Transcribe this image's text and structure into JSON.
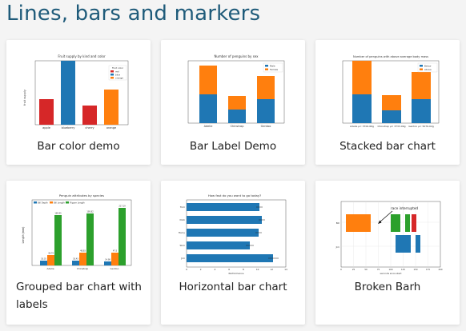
{
  "page": {
    "title": "Lines, bars and markers"
  },
  "cards": [
    {
      "label": "Bar color demo",
      "chart_data": {
        "type": "bar",
        "title": "Fruit supply by kind and color",
        "ylabel": "fruit supply",
        "categories": [
          "apple",
          "blueberry",
          "cherry",
          "orange"
        ],
        "values": [
          40,
          100,
          30,
          55
        ],
        "colors": [
          "#d62728",
          "#1f77b4",
          "#d62728",
          "#ff7f0e"
        ],
        "ylim": [
          0,
          100
        ],
        "legend": {
          "title": "Fruit color",
          "placement": "top-right",
          "entries": [
            {
              "name": "red",
              "color": "#d62728"
            },
            {
              "name": "blue",
              "color": "#1f77b4"
            },
            {
              "name": "orange",
              "color": "#ff7f0e"
            }
          ]
        }
      }
    },
    {
      "label": "Bar Label Demo",
      "chart_data": {
        "type": "bar",
        "title": "Number of penguins by sex",
        "categories": [
          "Adelie",
          "Chinstrap",
          "Gentoo"
        ],
        "series": [
          {
            "name": "Male",
            "values": [
              73,
              34,
              61
            ],
            "color": "#1f77b4"
          },
          {
            "name": "Female",
            "values": [
              73,
              34,
              58
            ],
            "color": "#ff7f0e"
          }
        ],
        "ylim": [
          0,
          160
        ],
        "legend": {
          "placement": "top-right"
        }
      }
    },
    {
      "label": "Stacked bar chart",
      "chart_data": {
        "type": "bar",
        "title": "Number of penguins with above average body mass",
        "categories": [
          "Adelie\nμ= 3700.66g",
          "Chinstrap\nμ= 3733.09g",
          "Gentoo\nμ= 5076.02g"
        ],
        "series": [
          {
            "name": "Below",
            "values": [
              70,
              31,
              58
            ],
            "color": "#1f77b4"
          },
          {
            "name": "Above",
            "values": [
              82,
              37,
              66
            ],
            "color": "#ff7f0e"
          }
        ],
        "ylim": [
          0,
          160
        ],
        "legend": {
          "placement": "top-right"
        }
      }
    },
    {
      "label": "Grouped bar chart with labels",
      "chart_data": {
        "type": "bar",
        "title": "Penguin attributes by species",
        "ylabel": "Length (mm)",
        "categories": [
          "Adelie",
          "Chinstrap",
          "Gentoo"
        ],
        "series": [
          {
            "name": "Bill Depth",
            "values": [
              18.35,
              18.43,
              14.98
            ],
            "color": "#1f77b4"
          },
          {
            "name": "Bill Length",
            "values": [
              38.79,
              48.83,
              47.5
            ],
            "color": "#ff7f0e"
          },
          {
            "name": "Flipper Length",
            "values": [
              189.95,
              195.82,
              217.19
            ],
            "color": "#2ca02c"
          }
        ],
        "ylim": [
          0,
          250
        ],
        "legend": {
          "placement": "top-left"
        }
      }
    },
    {
      "label": "Horizontal bar chart",
      "chart_data": {
        "type": "bar",
        "orientation": "horizontal",
        "title": "How fast do you want to go today?",
        "xlabel": "Performance",
        "categories": [
          "Tom",
          "Dick",
          "Harry",
          "Slim",
          "Jim"
        ],
        "values": [
          10.3,
          10.6,
          10.1,
          8.9,
          12.2
        ],
        "xlim": [
          0,
          14
        ],
        "xticks": [
          0,
          2,
          4,
          6,
          8,
          10,
          12,
          14
        ]
      }
    },
    {
      "label": "Broken Barh",
      "chart_data": {
        "type": "bar",
        "orientation": "broken-horizontal",
        "xlabel": "seconds since start",
        "annotation": "race interrupted",
        "yticks": [
          "Jim",
          "Bill"
        ],
        "xlim": [
          0,
          200
        ],
        "xticks": [
          0,
          25,
          50,
          75,
          100,
          125,
          150,
          175,
          200
        ],
        "series": [
          {
            "y": "Bill",
            "segments": [
              [
                10,
                50
              ]
            ],
            "color": "#ff7f0e"
          },
          {
            "y": "Bill",
            "segments": [
              [
                100,
                20
              ],
              [
                130,
                10
              ]
            ],
            "color": "#2ca02c"
          },
          {
            "y": "Bill",
            "segments": [
              [
                145,
                10
              ]
            ],
            "color": "#d62728"
          },
          {
            "y": "Jim",
            "segments": [
              [
                110,
                30
              ],
              [
                150,
                10
              ]
            ],
            "color": "#1f77b4"
          }
        ]
      }
    }
  ]
}
